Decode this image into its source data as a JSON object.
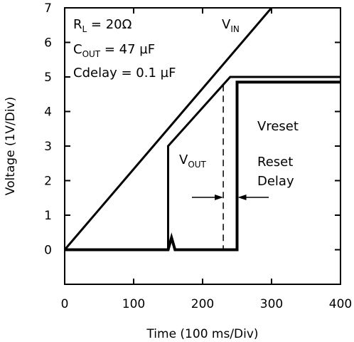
{
  "chart_data": {
    "type": "line",
    "title": "",
    "xlabel": "Time (100 ms/Div)",
    "ylabel": "Voltage (1V/Div)",
    "xlim": [
      0,
      400
    ],
    "ylim": [
      -1,
      7
    ],
    "x_ticks": [
      "0",
      "100",
      "200",
      "300",
      "400"
    ],
    "y_ticks": [
      "0",
      "1",
      "2",
      "3",
      "4",
      "5",
      "6",
      "7"
    ],
    "grid": false,
    "series": [
      {
        "name": "VIN",
        "points": [
          [
            0,
            0
          ],
          [
            300,
            7
          ]
        ]
      },
      {
        "name": "VOUT",
        "points": [
          [
            0,
            0
          ],
          [
            150,
            0
          ],
          [
            150,
            3
          ],
          [
            240,
            5
          ],
          [
            400,
            5
          ]
        ]
      },
      {
        "name": "Vreset",
        "points": [
          [
            0,
            0
          ],
          [
            150,
            0
          ],
          [
            155,
            0.35
          ],
          [
            160,
            0
          ],
          [
            250,
            0
          ],
          [
            250,
            4.85
          ],
          [
            400,
            4.85
          ]
        ]
      }
    ],
    "reset_threshold_x": 230,
    "annotations": {
      "params": [
        {
          "main": "R",
          "sub": "L",
          "rest": " = 20Ω"
        },
        {
          "main": "C",
          "sub": "OUT",
          "rest": " = 47 µF"
        },
        {
          "main": "Cdelay = 0.1 µF",
          "sub": "",
          "rest": ""
        }
      ],
      "vin": {
        "main": "V",
        "sub": "IN"
      },
      "vout": {
        "main": "V",
        "sub": "OUT"
      },
      "vreset": "Vreset",
      "reset_delay": [
        "Reset",
        "Delay"
      ]
    }
  }
}
